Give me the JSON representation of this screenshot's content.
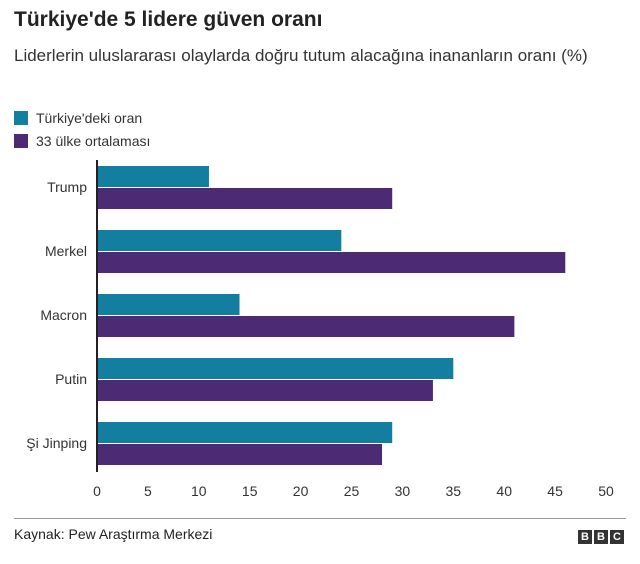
{
  "chart_data": {
    "type": "bar",
    "orientation": "horizontal",
    "title": "Türkiye'de 5 lidere güven oranı",
    "subtitle": "Liderlerin uluslararası olaylarda doğru tutum alacağına inananların oranı (%)",
    "categories": [
      "Trump",
      "Merkel",
      "Macron",
      "Putin",
      "Şi Jinping"
    ],
    "series": [
      {
        "name": "Türkiye'deki oran",
        "color": "#147ea0",
        "values": [
          11,
          24,
          14,
          35,
          29
        ]
      },
      {
        "name": "33 ülke ortalaması",
        "color": "#4d2a74",
        "values": [
          29,
          46,
          41,
          33,
          28
        ]
      }
    ],
    "xlim": [
      0,
      50
    ],
    "xticks": [
      "0",
      "5",
      "10",
      "15",
      "20",
      "25",
      "30",
      "35",
      "40",
      "45",
      "50"
    ],
    "grid": false,
    "legend": "top-left"
  },
  "footer": {
    "source": "Kaynak: Pew Araştırma Merkezi",
    "logo": [
      "B",
      "B",
      "C"
    ]
  }
}
